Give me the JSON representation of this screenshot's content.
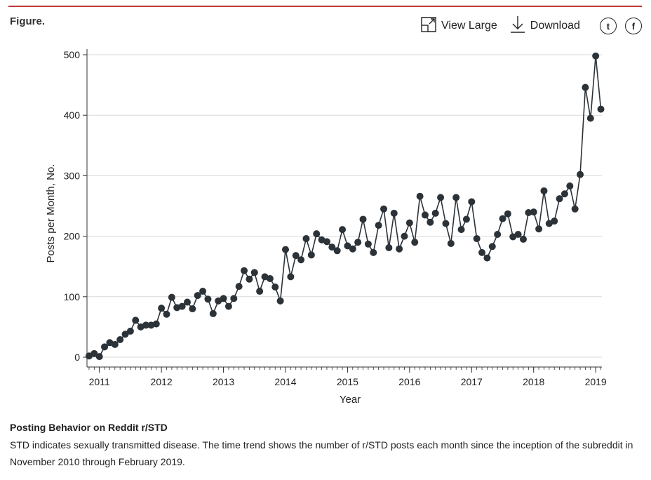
{
  "header": {
    "figure_label": "Figure.",
    "view_large_label": "View Large",
    "download_label": "Download",
    "twitter_glyph": "t",
    "facebook_glyph": "f"
  },
  "caption": {
    "title": "Posting Behavior on Reddit r/STD",
    "body": "STD indicates sexually transmitted disease. The time trend shows the number of r/STD posts each month since the inception of the subreddit in November 2010 through February 2019."
  },
  "colors": {
    "accent": "#c0393b",
    "series": "#2b3238",
    "grid": "#d9d9d9"
  },
  "chart_data": {
    "type": "line",
    "title": "",
    "xlabel": "Year",
    "ylabel": "Posts per Month, No.",
    "xlim": [
      2010.8,
      2019.1
    ],
    "ylim": [
      0,
      500
    ],
    "yticks": [
      0,
      100,
      200,
      300,
      400,
      500
    ],
    "xticks": [
      2011,
      2012,
      2013,
      2014,
      2015,
      2016,
      2017,
      2018,
      2019
    ],
    "grid": true,
    "start": "2010-11",
    "end": "2019-02",
    "series": [
      {
        "name": "Posts per month",
        "markers": true,
        "values": [
          2,
          6,
          1,
          17,
          24,
          21,
          29,
          38,
          43,
          61,
          50,
          53,
          53,
          55,
          81,
          71,
          99,
          82,
          84,
          91,
          80,
          102,
          109,
          96,
          72,
          93,
          97,
          84,
          97,
          117,
          143,
          129,
          140,
          109,
          133,
          130,
          116,
          93,
          178,
          133,
          168,
          161,
          196,
          169,
          204,
          194,
          191,
          182,
          176,
          211,
          184,
          179,
          190,
          228,
          187,
          173,
          218,
          245,
          181,
          238,
          179,
          200,
          222,
          190,
          266,
          235,
          223,
          238,
          264,
          221,
          188,
          264,
          211,
          228,
          257,
          196,
          173,
          164,
          183,
          203,
          229,
          237,
          199,
          203,
          195,
          239,
          240,
          212,
          275,
          221,
          225,
          262,
          270,
          283,
          245,
          302,
          446,
          395,
          498,
          410
        ]
      }
    ]
  }
}
